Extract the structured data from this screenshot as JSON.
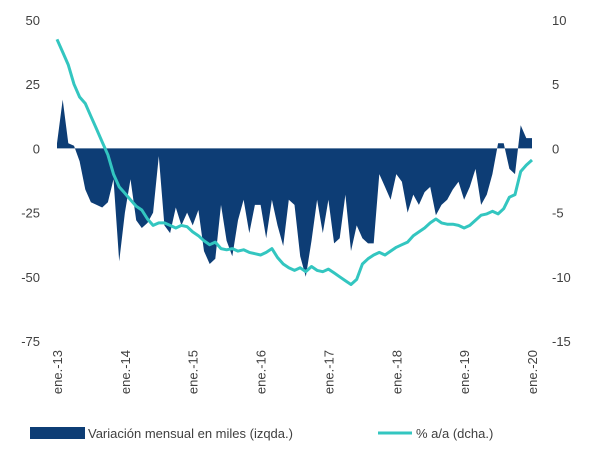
{
  "chart_data": {
    "type": "area-line",
    "categories": [
      "ene.-13",
      null,
      null,
      null,
      null,
      null,
      null,
      null,
      null,
      null,
      null,
      null,
      "ene.-14",
      null,
      null,
      null,
      null,
      null,
      null,
      null,
      null,
      null,
      null,
      null,
      "ene.-15",
      null,
      null,
      null,
      null,
      null,
      null,
      null,
      null,
      null,
      null,
      null,
      "ene.-16",
      null,
      null,
      null,
      null,
      null,
      null,
      null,
      null,
      null,
      null,
      null,
      "ene.-17",
      null,
      null,
      null,
      null,
      null,
      null,
      null,
      null,
      null,
      null,
      null,
      "ene.-18",
      null,
      null,
      null,
      null,
      null,
      null,
      null,
      null,
      null,
      null,
      null,
      "ene.-19",
      null,
      null,
      null,
      null,
      null,
      null,
      null,
      null,
      null,
      null,
      null,
      "ene.-20"
    ],
    "series": [
      {
        "name": "Variación mensual en miles (izqda.)",
        "color": "#0d3d75",
        "axis": "y",
        "values": [
          2,
          19,
          2,
          1,
          -5,
          -16,
          -21,
          -22,
          -23,
          -21,
          -12,
          -44,
          -25,
          -12,
          -28,
          -31,
          -29,
          -25,
          -3,
          -30,
          -33,
          -23,
          -30,
          -25,
          -30,
          -24,
          -40,
          -45,
          -43,
          -22,
          -36,
          -42,
          -28,
          -20,
          -33,
          -22,
          -22,
          -35,
          -20,
          -30,
          -38,
          -20,
          -22,
          -42,
          -50,
          -36,
          -20,
          -33,
          -20,
          -37,
          -35,
          -18,
          -40,
          -30,
          -35,
          -37,
          -37,
          -10,
          -15,
          -20,
          -10,
          -13,
          -25,
          -18,
          -22,
          -17,
          -15,
          -26,
          -22,
          -20,
          -16,
          -13,
          -20,
          -15,
          -8,
          -22,
          -18,
          -10,
          2,
          2,
          -8,
          -10,
          9,
          4,
          4
        ]
      },
      {
        "name": "% a/a (dcha.)",
        "color": "#33c6c0",
        "axis": "y2",
        "values": [
          8.5,
          7.5,
          6.5,
          5,
          4,
          3.5,
          2.5,
          1.5,
          0.5,
          -0.5,
          -2,
          -3,
          -3.5,
          -4,
          -4.5,
          -4.8,
          -5.5,
          -6,
          -5.8,
          -5.8,
          -6,
          -6.2,
          -6,
          -6.1,
          -6.5,
          -6.8,
          -7.2,
          -7.5,
          -7.3,
          -7.8,
          -7.9,
          -7.8,
          -8,
          -7.9,
          -8.1,
          -8.2,
          -8.3,
          -8.1,
          -7.8,
          -8.5,
          -9,
          -9.3,
          -9.5,
          -9.3,
          -9.6,
          -9.2,
          -9.5,
          -9.6,
          -9.4,
          -9.7,
          -10,
          -10.3,
          -10.6,
          -10.2,
          -9,
          -8.6,
          -8.3,
          -8.1,
          -8.3,
          -8,
          -7.7,
          -7.5,
          -7.3,
          -6.8,
          -6.5,
          -6.2,
          -5.8,
          -5.5,
          -5.8,
          -5.9,
          -5.9,
          -6,
          -6.2,
          -6,
          -5.6,
          -5.2,
          -5.1,
          -4.9,
          -5.1,
          -4.7,
          -3.8,
          -3.6,
          -1.8,
          -1.3,
          -0.9
        ]
      }
    ],
    "ylim": [
      -75,
      50
    ],
    "yticks": [
      -75,
      -50,
      -25,
      0,
      25,
      50
    ],
    "y2lim": [
      -15,
      10
    ],
    "y2ticks": [
      -15,
      -10,
      -5,
      0,
      5,
      10
    ],
    "legend": "bottom"
  }
}
